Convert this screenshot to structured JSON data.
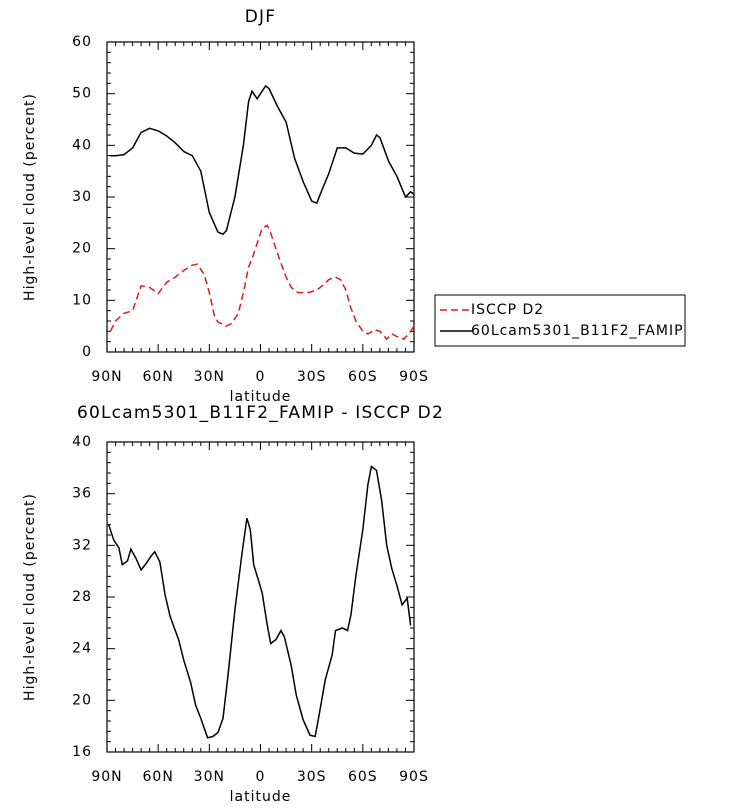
{
  "chart_data": [
    {
      "type": "line",
      "title": "DJF",
      "xlabel": "latitude",
      "ylabel": "High-level cloud (percent)",
      "xlim": [
        90,
        -90
      ],
      "xticks": [
        {
          "value": 90,
          "label": "90N"
        },
        {
          "value": 60,
          "label": "60N"
        },
        {
          "value": 30,
          "label": "30N"
        },
        0,
        {
          "value": -30,
          "label": "30S"
        },
        {
          "value": -60,
          "label": "60S"
        },
        {
          "value": -90,
          "label": "90S"
        }
      ],
      "ylim": [
        0,
        60
      ],
      "yticks": [
        0,
        10,
        20,
        30,
        40,
        50,
        60
      ],
      "legend": "right",
      "series": [
        {
          "name": "ISCCP D2",
          "color": "#e41a1c",
          "dash": true,
          "x": [
            88,
            85,
            80,
            75,
            70,
            65,
            60,
            55,
            50,
            45,
            40,
            37,
            33,
            30,
            27,
            25,
            20,
            17,
            13,
            10,
            7,
            5,
            2,
            -1,
            -4,
            -6,
            -10,
            -15,
            -18,
            -22,
            -28,
            -33,
            -37,
            -40,
            -44,
            -47,
            -50,
            -53,
            -56,
            -60,
            -63,
            -67,
            -70,
            -74,
            -77,
            -80,
            -84,
            -87,
            -90
          ],
          "values": [
            4,
            6,
            7.5,
            8,
            12.8,
            12.5,
            11.3,
            13.5,
            14.5,
            15.8,
            16.8,
            17,
            15,
            11.5,
            7,
            5.8,
            5,
            5.5,
            7.5,
            11.5,
            16.5,
            18,
            21,
            24,
            24.5,
            23,
            19,
            14.5,
            12.5,
            11.5,
            11.5,
            12,
            13,
            14,
            14.5,
            14,
            12,
            8.5,
            6,
            4,
            3.5,
            4.3,
            4,
            2.5,
            3.5,
            3,
            2.5,
            3.5,
            5
          ]
        },
        {
          "name": "60Lcam5301_B11F2_FAMIP",
          "color": "#000000",
          "dash": false,
          "x": [
            88,
            85,
            80,
            75,
            70,
            65,
            60,
            55,
            50,
            45,
            40,
            35,
            30,
            25,
            22,
            20,
            15,
            10,
            7,
            5,
            2,
            0,
            -3,
            -5,
            -10,
            -15,
            -20,
            -25,
            -30,
            -33,
            -35,
            -40,
            -45,
            -50,
            -55,
            -60,
            -65,
            -68,
            -70,
            -75,
            -80,
            -85,
            -88,
            -90
          ],
          "values": [
            38,
            38,
            38.2,
            39.5,
            42.5,
            43.3,
            42.8,
            41.8,
            40.5,
            38.8,
            38,
            35,
            27,
            23.2,
            22.8,
            23.5,
            30,
            40,
            48.5,
            50.5,
            49,
            50,
            51.5,
            51,
            47.5,
            44.5,
            37.5,
            33,
            29.2,
            28.8,
            30.5,
            34.5,
            39.5,
            39.5,
            38.5,
            38.3,
            40,
            42,
            41.5,
            37,
            34,
            30,
            31,
            30.5
          ]
        }
      ]
    },
    {
      "type": "line",
      "title": "60Lcam5301_B11F2_FAMIP - ISCCP D2",
      "xlabel": "latitude",
      "ylabel": "High-level cloud (percent)",
      "xlim": [
        90,
        -90
      ],
      "xticks": [
        {
          "value": 90,
          "label": "90N"
        },
        {
          "value": 60,
          "label": "60N"
        },
        {
          "value": 30,
          "label": "30N"
        },
        0,
        {
          "value": -30,
          "label": "30S"
        },
        {
          "value": -60,
          "label": "60S"
        },
        {
          "value": -90,
          "label": "90S"
        }
      ],
      "ylim": [
        16,
        40
      ],
      "yticks": [
        16,
        20,
        24,
        28,
        32,
        36,
        40
      ],
      "color": "#000000",
      "x": [
        89,
        86,
        83,
        81,
        78,
        76,
        73,
        70,
        67,
        64,
        62,
        59,
        56,
        53,
        48,
        45,
        41,
        38,
        35,
        31,
        28,
        25,
        22,
        19,
        15,
        11,
        8,
        6,
        4,
        1,
        -1,
        -4,
        -6,
        -9,
        -12,
        -14,
        -18,
        -21,
        -25,
        -29,
        -32,
        -34,
        -38,
        -42,
        -44,
        -48,
        -51,
        -53,
        -56,
        -60,
        -63,
        -65,
        -68,
        -71,
        -74,
        -77,
        -80,
        -83,
        -86,
        -88
      ],
      "values": [
        33.6,
        32.4,
        31.8,
        30.5,
        30.8,
        31.7,
        31,
        30.1,
        30.6,
        31.2,
        31.5,
        30.7,
        28.2,
        26.5,
        24.7,
        23.1,
        21.4,
        19.6,
        18.6,
        17.1,
        17.2,
        17.5,
        18.6,
        22,
        27,
        31.2,
        34.1,
        33.2,
        30.5,
        29.2,
        28.3,
        25.8,
        24.4,
        24.7,
        25.4,
        24.9,
        22.7,
        20.4,
        18.5,
        17.3,
        17.2,
        18.6,
        21.6,
        23.5,
        25.4,
        25.6,
        25.4,
        26.6,
        29.7,
        33.2,
        36.7,
        38.1,
        37.8,
        35.5,
        32,
        30.2,
        28.9,
        27.4,
        27.9,
        25.8
      ]
    }
  ]
}
